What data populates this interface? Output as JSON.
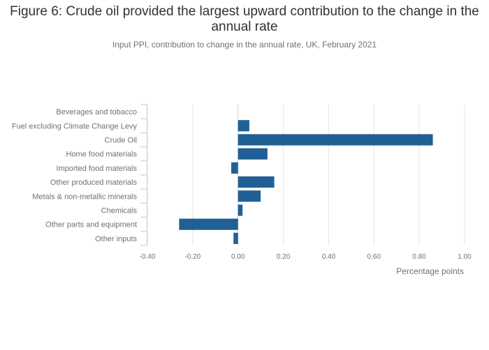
{
  "chart_data": {
    "type": "bar",
    "orientation": "horizontal",
    "title": "Figure 6: Crude oil provided the largest upward contribution to the change in the annual rate",
    "subtitle": "Input PPI, contribution to change in the annual rate, UK, February 2021",
    "categories": [
      "Beverages and tobacco",
      "Fuel excluding Climate Change Levy",
      "Crude Oil",
      "Home food materials",
      "Imported food materials",
      "Other produced materials",
      "Metals & non-metallic minerals",
      "Chemicals",
      "Other parts and equipment",
      "Other inputs"
    ],
    "values": [
      0.0,
      0.05,
      0.86,
      0.13,
      -0.03,
      0.16,
      0.1,
      0.02,
      -0.26,
      -0.02
    ],
    "xlabel": "Percentage points",
    "ylabel": "",
    "xlim": [
      -0.4,
      1.0
    ],
    "xticks": [
      -0.4,
      -0.2,
      0.0,
      0.2,
      0.4,
      0.6,
      0.8,
      1.0
    ],
    "xtick_labels": [
      "-0.40",
      "-0.20",
      "0.00",
      "0.20",
      "0.40",
      "0.60",
      "0.80",
      "1.00"
    ],
    "bar_color": "#206095",
    "grid": true
  }
}
